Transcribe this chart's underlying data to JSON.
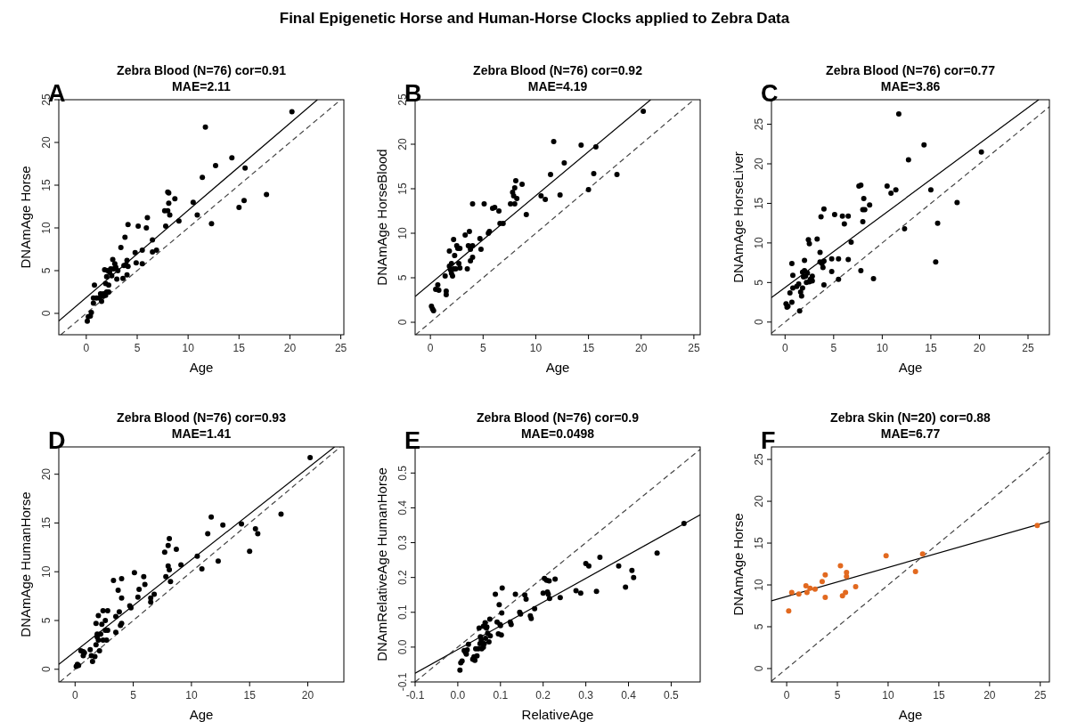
{
  "chart_data": [
    {
      "type": "scatter",
      "title": "Zebra Blood (N=76) cor=0.91",
      "subtitle": "MAE=2.11",
      "xlabel": "Age",
      "ylabel": "DNAmAge Horse",
      "annotations": [
        "A",
        "Final Epigenetic Horse and Human-Horse Clocks applied to Zebra Data"
      ],
      "xlim": [
        -2.7,
        25.3
      ],
      "ylim": [
        -2.5,
        25
      ],
      "xticks": [
        0,
        5,
        10,
        15,
        20,
        25
      ],
      "yticks": [
        0,
        5,
        10,
        15,
        20,
        25
      ],
      "series": [
        {
          "marker": "circle",
          "color": "#000000",
          "x": [
            0.1,
            0.2,
            0.4,
            0.5,
            0.7,
            0.7,
            0.8,
            1.0,
            1.3,
            1.4,
            1.5,
            1.6,
            1.7,
            1.8,
            1.9,
            1.9,
            2.0,
            2.0,
            2.1,
            2.2,
            2.2,
            2.3,
            2.4,
            2.5,
            2.6,
            2.7,
            2.8,
            2.9,
            3.0,
            3.1,
            3.4,
            3.6,
            3.7,
            3.8,
            3.9,
            4.0,
            4.0,
            4.1,
            4.1,
            4.8,
            4.9,
            5.1,
            5.5,
            5.5,
            5.9,
            6.0,
            6.5,
            6.5,
            6.9,
            7.7,
            7.8,
            8.0,
            8.0,
            8.1,
            8.1,
            8.2,
            8.7,
            9.1,
            10.5,
            10.9,
            11.4,
            11.7,
            12.3,
            12.7,
            14.3,
            15.0,
            15.5,
            15.6,
            17.7,
            20.2
          ],
          "values": [
            -0.9,
            -0.4,
            -0.3,
            0.1,
            1.2,
            1.8,
            3.3,
            1.8,
            1.8,
            2.3,
            1.4,
            2.0,
            2.3,
            5.1,
            2.1,
            3.5,
            2.5,
            4.3,
            5.0,
            2.5,
            3.3,
            4.8,
            5.2,
            4.4,
            6.3,
            5.2,
            5.8,
            5.4,
            4.0,
            5.0,
            7.7,
            4.1,
            5.6,
            8.9,
            5.7,
            6.2,
            4.5,
            5.5,
            10.4,
            7.1,
            5.9,
            10.2,
            7.4,
            5.8,
            10.0,
            11.2,
            8.6,
            7.2,
            7.4,
            12.0,
            10.2,
            12.0,
            14.2,
            12.9,
            14.1,
            11.5,
            13.4,
            10.8,
            13.0,
            11.5,
            15.9,
            21.8,
            10.5,
            17.3,
            18.2,
            12.4,
            13.2,
            17.0,
            13.9,
            23.6
          ]
        },
        {
          "type": "line",
          "color": "#000000",
          "line_style": "solid",
          "x": [
            -2.7,
            22.7
          ],
          "values": [
            -0.9,
            25
          ]
        },
        {
          "type": "line",
          "color": "#444444",
          "line_style": "dashed",
          "x": [
            -2.5,
            25
          ],
          "values": [
            -2.5,
            25
          ]
        }
      ]
    },
    {
      "type": "scatter",
      "title": "Zebra Blood (N=76) cor=0.92",
      "subtitle": "MAE=4.19",
      "xlabel": "Age",
      "ylabel": "DNAmAge HorseBlood",
      "annotations": [
        "B"
      ],
      "xlim": [
        -1.45,
        25.6
      ],
      "ylim": [
        -1.4,
        25
      ],
      "xticks": [
        0,
        5,
        10,
        15,
        20,
        25
      ],
      "yticks": [
        0,
        5,
        10,
        15,
        20,
        25
      ],
      "series": [
        {
          "marker": "circle",
          "color": "#000000",
          "x": [
            0.1,
            0.2,
            0.3,
            0.5,
            0.7,
            0.8,
            1.4,
            1.5,
            1.5,
            1.8,
            1.8,
            1.9,
            2.0,
            2.0,
            2.1,
            2.2,
            2.2,
            2.3,
            2.4,
            2.5,
            2.6,
            2.7,
            2.8,
            2.8,
            3.3,
            3.5,
            3.6,
            3.7,
            3.8,
            3.8,
            4.0,
            4.0,
            4.0,
            4.7,
            4.8,
            5.1,
            5.5,
            5.6,
            5.9,
            6.1,
            6.5,
            6.6,
            6.9,
            7.6,
            7.8,
            7.9,
            8.0,
            8.0,
            8.1,
            8.2,
            8.7,
            9.1,
            10.5,
            10.9,
            11.4,
            11.7,
            12.3,
            12.7,
            14.3,
            15.0,
            15.5,
            15.7,
            17.7,
            20.2
          ],
          "values": [
            1.8,
            1.5,
            1.3,
            3.7,
            4.2,
            3.6,
            5.2,
            3.5,
            3.1,
            6.3,
            8.0,
            5.9,
            5.5,
            6.6,
            5.2,
            9.3,
            6.0,
            7.5,
            6.0,
            8.6,
            8.3,
            6.6,
            6.1,
            8.3,
            9.8,
            6.0,
            8.6,
            10.2,
            6.9,
            8.2,
            7.3,
            13.3,
            8.6,
            9.4,
            8.2,
            13.3,
            10.0,
            10.2,
            12.8,
            12.9,
            12.5,
            11.1,
            11.1,
            13.3,
            14.6,
            14.2,
            13.3,
            15.1,
            15.9,
            13.9,
            15.5,
            12.1,
            14.2,
            13.8,
            16.6,
            20.3,
            14.3,
            17.9,
            19.9,
            14.9,
            16.7,
            19.7,
            16.6,
            23.7
          ]
        },
        {
          "type": "line",
          "color": "#000000",
          "line_style": "solid",
          "x": [
            -1.45,
            20.9
          ],
          "values": [
            2.9,
            25
          ]
        },
        {
          "type": "line",
          "color": "#444444",
          "line_style": "dashed",
          "x": [
            -1.4,
            25
          ],
          "values": [
            -1.4,
            25
          ]
        }
      ]
    },
    {
      "type": "scatter",
      "title": "Zebra Blood (N=76) cor=0.77",
      "subtitle": "MAE=3.86",
      "xlabel": "Age",
      "ylabel": "DNAmAge HorseLiver",
      "annotations": [
        "C"
      ],
      "xlim": [
        -1.4,
        27.2
      ],
      "ylim": [
        -1.6,
        28.1
      ],
      "xticks": [
        0,
        5,
        10,
        15,
        20,
        25
      ],
      "yticks": [
        0,
        5,
        10,
        15,
        20,
        25
      ],
      "series": [
        {
          "marker": "circle",
          "color": "#000000",
          "x": [
            0.1,
            0.2,
            0.3,
            0.5,
            0.7,
            0.7,
            0.8,
            0.8,
            1.2,
            1.4,
            1.5,
            1.6,
            1.7,
            1.8,
            1.8,
            1.9,
            2.0,
            2.0,
            2.1,
            2.2,
            2.3,
            2.4,
            2.5,
            2.5,
            2.6,
            2.8,
            2.8,
            3.3,
            3.6,
            3.6,
            3.7,
            3.8,
            3.9,
            4.0,
            4.0,
            4.0,
            4.8,
            4.8,
            5.1,
            5.5,
            5.5,
            5.9,
            6.1,
            6.5,
            6.5,
            6.8,
            7.6,
            7.8,
            7.8,
            8.0,
            8.0,
            8.1,
            8.2,
            8.7,
            9.1,
            10.5,
            10.9,
            11.4,
            11.7,
            12.3,
            12.7,
            14.3,
            15.0,
            15.5,
            15.7,
            17.7,
            20.2
          ],
          "values": [
            2.3,
            1.9,
            2.0,
            3.7,
            2.5,
            7.4,
            5.9,
            4.3,
            4.5,
            4.8,
            1.4,
            3.8,
            3.3,
            6.3,
            4.3,
            5.7,
            7.8,
            6.5,
            5.8,
            5.0,
            6.2,
            10.4,
            9.9,
            5.1,
            5.4,
            5.8,
            5.2,
            10.5,
            7.6,
            8.8,
            13.3,
            7.4,
            6.9,
            14.3,
            7.7,
            4.7,
            8.0,
            6.4,
            13.6,
            8.0,
            5.4,
            13.4,
            12.4,
            13.4,
            7.9,
            10.1,
            17.2,
            17.3,
            6.5,
            12.7,
            14.2,
            15.6,
            14.2,
            14.8,
            5.5,
            17.2,
            16.3,
            16.7,
            26.3,
            11.8,
            20.5,
            22.4,
            16.7,
            7.6,
            12.5,
            15.1,
            21.5
          ]
        },
        {
          "type": "line",
          "color": "#000000",
          "line_style": "solid",
          "x": [
            -1.4,
            26.1
          ],
          "values": [
            3.1,
            28.1
          ]
        },
        {
          "type": "line",
          "color": "#444444",
          "line_style": "dashed",
          "x": [
            -1.4,
            27.2
          ],
          "values": [
            -1.4,
            27.2
          ]
        }
      ]
    },
    {
      "type": "scatter",
      "title": "Zebra Blood (N=76) cor=0.93",
      "subtitle": "MAE=1.41",
      "xlabel": "Age",
      "ylabel": "DNAmAge HumanHorse",
      "annotations": [
        "D"
      ],
      "xlim": [
        -1.4,
        23.1
      ],
      "ylim": [
        -1.3,
        22.8
      ],
      "xticks": [
        0,
        5,
        10,
        15,
        20
      ],
      "yticks": [
        0,
        5,
        10,
        15,
        20
      ],
      "series": [
        {
          "marker": "circle",
          "color": "#000000",
          "x": [
            0.1,
            0.2,
            0.3,
            0.5,
            0.7,
            0.7,
            0.8,
            1.3,
            1.4,
            1.5,
            1.7,
            1.8,
            1.8,
            1.9,
            1.9,
            2.0,
            2.0,
            2.1,
            2.2,
            2.3,
            2.4,
            2.4,
            2.6,
            2.6,
            2.7,
            2.8,
            2.8,
            3.3,
            3.5,
            3.5,
            3.7,
            3.8,
            3.9,
            4.0,
            4.0,
            4.0,
            4.7,
            4.8,
            5.1,
            5.4,
            5.5,
            5.9,
            6.0,
            6.5,
            6.5,
            6.8,
            7.7,
            7.8,
            8.0,
            8.0,
            8.1,
            8.1,
            8.2,
            8.7,
            9.1,
            10.5,
            10.9,
            11.4,
            11.7,
            12.3,
            12.7,
            14.3,
            15.0,
            15.5,
            15.7,
            17.7,
            20.2
          ],
          "values": [
            0.3,
            0.5,
            0.4,
            1.9,
            1.8,
            1.4,
            1.7,
            2.0,
            1.4,
            0.8,
            1.3,
            4.7,
            2.5,
            3.3,
            3.6,
            5.5,
            3.0,
            1.9,
            3.6,
            4.6,
            6.0,
            3.0,
            5.0,
            4.0,
            3.0,
            6.0,
            4.0,
            9.1,
            3.8,
            5.4,
            8.1,
            5.9,
            4.5,
            9.3,
            7.3,
            4.7,
            6.5,
            6.3,
            9.9,
            7.4,
            8.2,
            9.5,
            8.7,
            6.9,
            7.3,
            7.7,
            12.0,
            9.5,
            12.7,
            10.6,
            13.4,
            10.2,
            9.0,
            12.3,
            10.7,
            11.6,
            10.3,
            13.9,
            15.6,
            11.1,
            14.8,
            14.9,
            12.1,
            14.4,
            13.9,
            15.9,
            21.7
          ]
        },
        {
          "type": "line",
          "color": "#000000",
          "line_style": "solid",
          "x": [
            -1.4,
            22.3
          ],
          "values": [
            0.5,
            22.8
          ]
        },
        {
          "type": "line",
          "color": "#444444",
          "line_style": "dashed",
          "x": [
            -1.3,
            22.8
          ],
          "values": [
            -1.3,
            22.8
          ]
        }
      ]
    },
    {
      "type": "scatter",
      "title": "Zebra Blood (N=76) cor=0.9",
      "subtitle": "MAE=0.0498",
      "xlabel": "RelativeAge",
      "ylabel": "DNAmRelativeAge HumanHorse",
      "annotations": [
        "E"
      ],
      "xlim": [
        -0.1,
        0.568
      ],
      "ylim": [
        -0.1,
        0.575
      ],
      "xticks": [
        {
          "value": -0.1,
          "label": "-0.1"
        },
        {
          "value": 0,
          "label": "0.0"
        },
        {
          "value": 0.1,
          "label": "0.1"
        },
        {
          "value": 0.2,
          "label": "0.2"
        },
        {
          "value": 0.3,
          "label": "0.3"
        },
        {
          "value": 0.4,
          "label": "0.4"
        },
        {
          "value": 0.5,
          "label": "0.5"
        }
      ],
      "yticks": [
        {
          "value": -0.1,
          "label": "-0.1"
        },
        {
          "value": 0,
          "label": "0.0"
        },
        {
          "value": 0.1,
          "label": "0.1"
        },
        {
          "value": 0.2,
          "label": "0.2"
        },
        {
          "value": 0.3,
          "label": "0.3"
        },
        {
          "value": 0.4,
          "label": "0.4"
        },
        {
          "value": 0.5,
          "label": "0.5"
        }
      ],
      "series": [
        {
          "marker": "circle",
          "color": "#000000",
          "x": [
            0.005,
            0.007,
            0.01,
            0.015,
            0.018,
            0.02,
            0.022,
            0.025,
            0.035,
            0.038,
            0.04,
            0.042,
            0.045,
            0.048,
            0.05,
            0.052,
            0.053,
            0.055,
            0.056,
            0.06,
            0.06,
            0.062,
            0.064,
            0.065,
            0.067,
            0.068,
            0.07,
            0.073,
            0.075,
            0.076,
            0.088,
            0.092,
            0.095,
            0.097,
            0.099,
            0.1,
            0.102,
            0.103,
            0.104,
            0.123,
            0.125,
            0.135,
            0.145,
            0.147,
            0.157,
            0.16,
            0.17,
            0.172,
            0.18,
            0.2,
            0.203,
            0.208,
            0.21,
            0.212,
            0.215,
            0.214,
            0.228,
            0.24,
            0.277,
            0.288,
            0.3,
            0.307,
            0.325,
            0.333,
            0.377,
            0.393,
            0.408,
            0.412,
            0.467,
            0.53
          ],
          "values": [
            -0.066,
            -0.045,
            -0.04,
            -0.01,
            -0.015,
            -0.02,
            -0.008,
            0.008,
            -0.035,
            -0.028,
            -0.038,
            -0.005,
            -0.025,
            -0.005,
            0.055,
            0.01,
            0.03,
            0.02,
            -0.005,
            0.06,
            0.0,
            0.01,
            0.07,
            0.025,
            0.055,
            0.058,
            0.04,
            0.015,
            0.08,
            0.032,
            0.152,
            0.072,
            0.038,
            0.122,
            0.065,
            0.062,
            0.035,
            0.098,
            0.17,
            0.072,
            0.065,
            0.152,
            0.1,
            0.095,
            0.15,
            0.138,
            0.09,
            0.082,
            0.11,
            0.155,
            0.197,
            0.192,
            0.158,
            0.152,
            0.14,
            0.19,
            0.195,
            0.142,
            0.162,
            0.155,
            0.24,
            0.233,
            0.16,
            0.258,
            0.233,
            0.172,
            0.22,
            0.2,
            0.27,
            0.355
          ]
        },
        {
          "type": "line",
          "color": "#000000",
          "line_style": "solid",
          "x": [
            -0.1,
            0.568
          ],
          "values": [
            -0.075,
            0.38
          ]
        },
        {
          "type": "line",
          "color": "#444444",
          "line_style": "dashed",
          "x": [
            -0.1,
            0.568
          ],
          "values": [
            -0.1,
            0.568
          ]
        }
      ]
    },
    {
      "type": "scatter",
      "title": "Zebra Skin (N=20) cor=0.88",
      "subtitle": "MAE=6.77",
      "xlabel": "Age",
      "ylabel": "DNAmAge Horse",
      "annotations": [
        "F"
      ],
      "xlim": [
        -1.5,
        25.9
      ],
      "ylim": [
        -1.6,
        26.5
      ],
      "xticks": [
        0,
        5,
        10,
        15,
        20,
        25
      ],
      "yticks": [
        0,
        5,
        10,
        15,
        20,
        25
      ],
      "series": [
        {
          "marker": "circle",
          "color": "#e2691f",
          "x": [
            0.2,
            0.5,
            1.2,
            1.9,
            2.0,
            2.3,
            2.8,
            3.5,
            3.8,
            3.8,
            5.3,
            5.5,
            5.8,
            5.9,
            5.9,
            6.8,
            9.8,
            12.7,
            13.4,
            24.7
          ],
          "values": [
            6.9,
            9.1,
            8.9,
            9.9,
            9.1,
            9.6,
            9.5,
            10.4,
            8.5,
            11.2,
            12.3,
            8.7,
            9.1,
            11.5,
            11.0,
            9.8,
            13.5,
            11.6,
            13.7,
            17.1
          ]
        },
        {
          "type": "line",
          "color": "#000000",
          "line_style": "solid",
          "x": [
            -1.5,
            25.9
          ],
          "values": [
            8.1,
            17.6
          ]
        },
        {
          "type": "line",
          "color": "#444444",
          "line_style": "dashed",
          "x": [
            -1.5,
            25.9
          ],
          "values": [
            -1.5,
            25.9
          ]
        }
      ]
    }
  ]
}
